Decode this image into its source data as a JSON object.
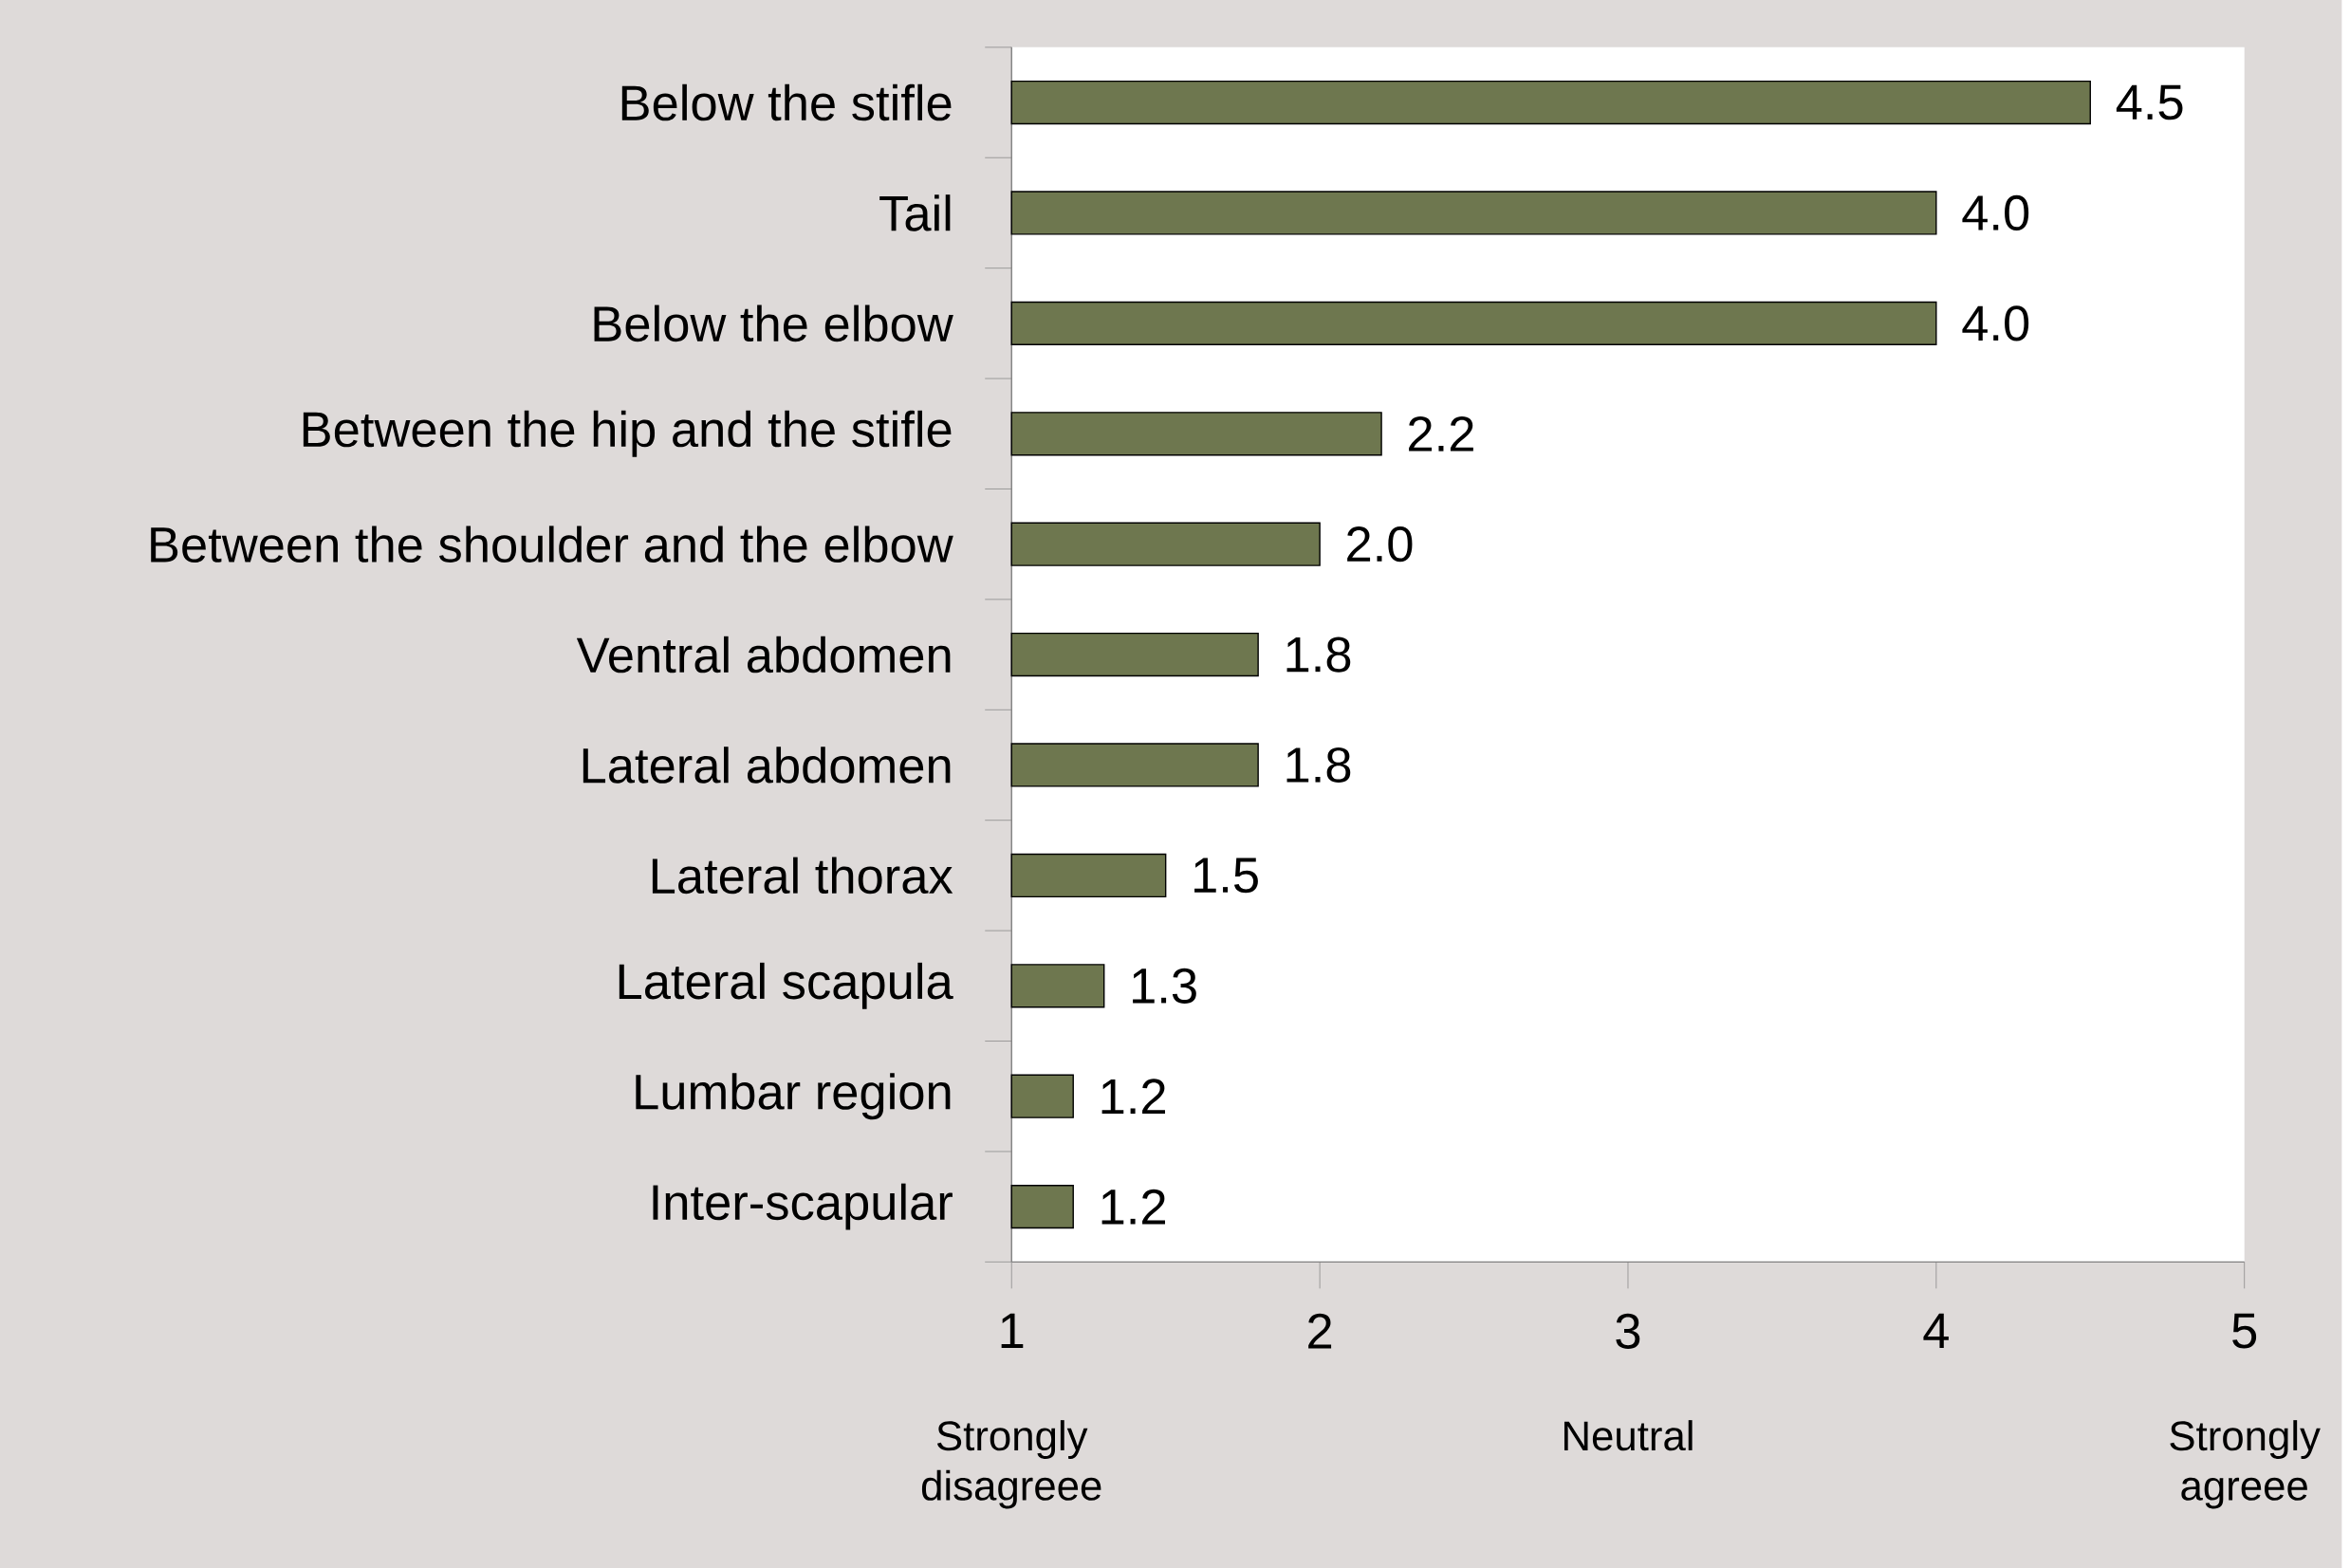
{
  "chart_data": {
    "type": "bar",
    "orientation": "horizontal",
    "categories": [
      "Below the stifle",
      "Tail",
      "Below the elbow",
      "Between the hip and the stifle",
      "Between the shoulder and the elbow",
      "Ventral abdomen",
      "Lateral abdomen",
      "Lateral thorax",
      "Lateral scapula",
      "Lumbar region",
      "Inter-scapular"
    ],
    "values": [
      4.5,
      4.0,
      4.0,
      2.2,
      2.0,
      1.8,
      1.8,
      1.5,
      1.3,
      1.2,
      1.2
    ],
    "value_labels": [
      "4.5",
      "4.0",
      "4.0",
      "2.2",
      "2.0",
      "1.8",
      "1.8",
      "1.5",
      "1.3",
      "1.2",
      "1.2"
    ],
    "color": "#6e774f",
    "grid": false,
    "xlim": [
      1,
      5
    ],
    "xticks": [
      1,
      2,
      3,
      4,
      5
    ],
    "annotations": [
      "Strongly disagreee",
      "Neutral",
      "Strongly agreee"
    ]
  }
}
